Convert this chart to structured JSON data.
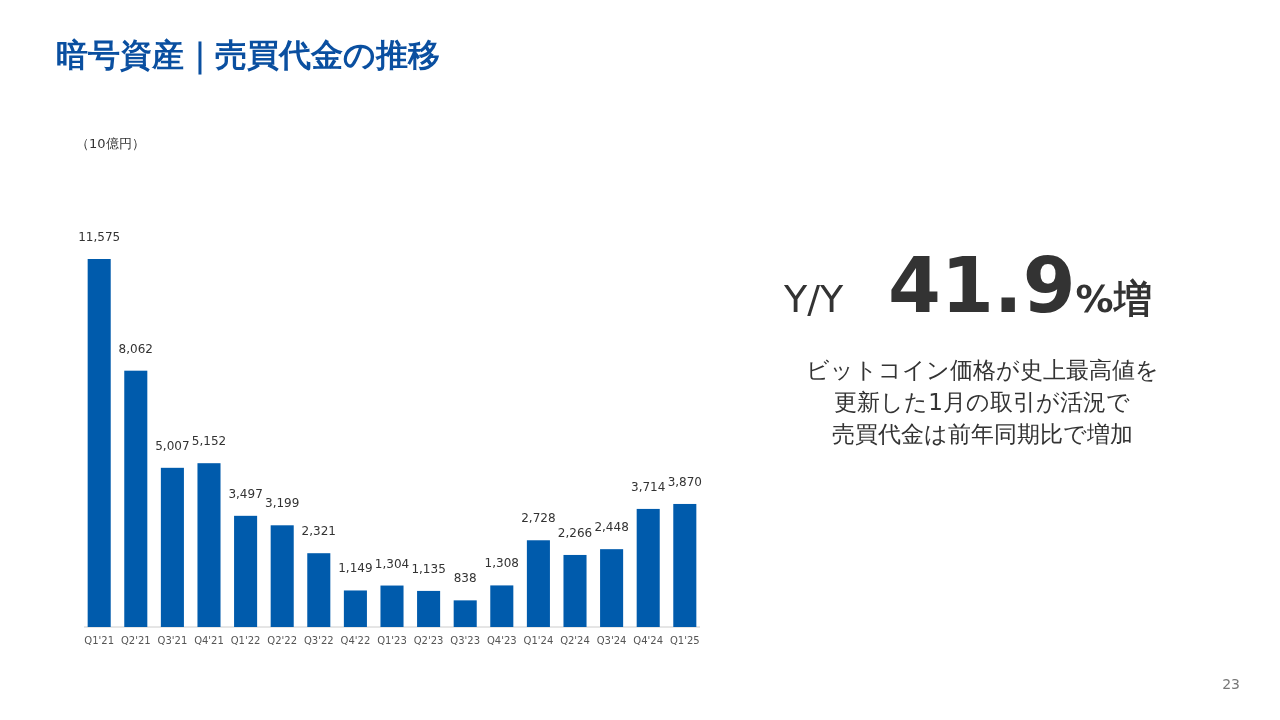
{
  "chart_data": {
    "type": "bar",
    "title": "暗号資産｜売買代金の推移",
    "categories": [
      "Q1'21",
      "Q2'21",
      "Q3'21",
      "Q4'21",
      "Q1'22",
      "Q2'22",
      "Q3'22",
      "Q4'22",
      "Q1'23",
      "Q2'23",
      "Q3'23",
      "Q4'23",
      "Q1'24",
      "Q2'24",
      "Q3'24",
      "Q4'24",
      "Q1'25"
    ],
    "values": [
      11575,
      8062,
      5007,
      5152,
      3497,
      3199,
      2321,
      1149,
      1304,
      1135,
      838,
      1308,
      2728,
      2266,
      2448,
      3714,
      3870
    ],
    "value_labels": [
      "11,575",
      "8,062",
      "5,007",
      "5,152",
      "3,497",
      "3,199",
      "2,321",
      "1,149",
      "1,304",
      "1,135",
      "838",
      "1,308",
      "2,728",
      "2,266",
      "2,448",
      "3,714",
      "3,870"
    ],
    "color": "#005bac",
    "relative": false,
    "annotations": [
      "（10億円）",
      "Y/Y",
      "41.9%増",
      "ビットコイン価格が史上最高値を",
      "更新した1月の取引が活況で",
      "売買代金は前年同期比で増加",
      "23"
    ]
  }
}
